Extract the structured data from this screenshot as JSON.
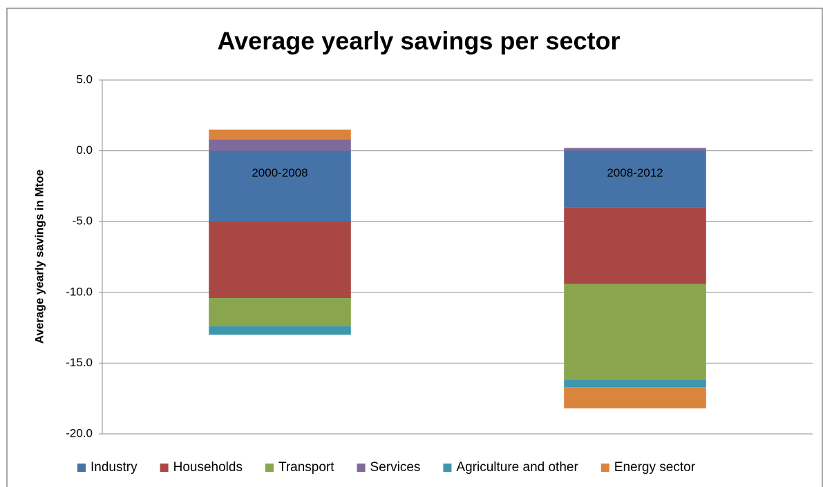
{
  "chart_data": {
    "type": "stacked-bar",
    "title": "Average yearly savings per sector",
    "y_label": "Average yearly savings in Mtoe",
    "categories": [
      "2000-2008",
      "2008-2012"
    ],
    "series": [
      {
        "name": "Industry",
        "color": "#4572a7",
        "values": [
          -5.0,
          -4.0
        ]
      },
      {
        "name": "Households",
        "color": "#aa4643",
        "values": [
          -5.4,
          -5.4
        ]
      },
      {
        "name": "Transport",
        "color": "#89a54e",
        "values": [
          -2.0,
          -6.8
        ]
      },
      {
        "name": "Services",
        "color": "#80699b",
        "values": [
          0.8,
          0.2
        ]
      },
      {
        "name": "Agriculture and other",
        "color": "#3d96ae",
        "values": [
          -0.6,
          -0.5
        ]
      },
      {
        "name": "Energy sector",
        "color": "#db843d",
        "values": [
          0.7,
          -1.5
        ]
      }
    ],
    "ylim": [
      -20,
      5
    ],
    "yticks": [
      {
        "value": 5,
        "label": "5.0"
      },
      {
        "value": 0,
        "label": "0.0"
      },
      {
        "value": -5,
        "label": "-5.0"
      },
      {
        "value": -10,
        "label": "-10.0"
      },
      {
        "value": -15,
        "label": "-15.0"
      },
      {
        "value": -20,
        "label": "-20.0"
      }
    ],
    "grid": true,
    "legend": "bottom"
  }
}
